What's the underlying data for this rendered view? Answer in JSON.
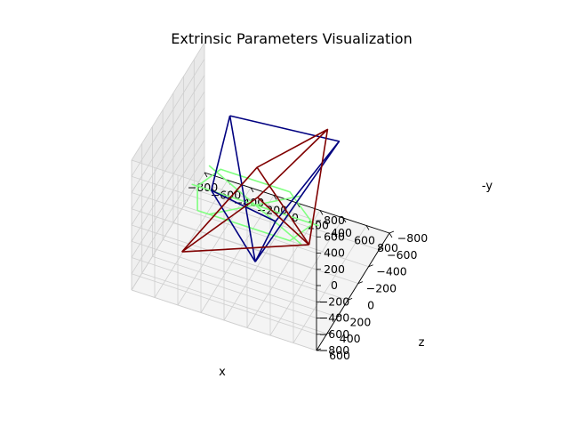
{
  "chart_data": {
    "type": "3d-line",
    "title": "Extrinsic Parameters Visualization",
    "xlabel": "x",
    "ylabel": "z",
    "zlabel": "-y",
    "xlim": [
      -800,
      800
    ],
    "ylim": [
      -800,
      600
    ],
    "zlim": [
      -800,
      800
    ],
    "xticks": [
      "−800",
      "−600",
      "−400",
      "−200",
      "0",
      "200",
      "400",
      "600",
      "800"
    ],
    "yticks": [
      "−800",
      "−600",
      "−400",
      "−200",
      "0",
      "200",
      "400",
      "600"
    ],
    "zticks": [
      "−800",
      "−600",
      "−400",
      "−200",
      "0",
      "200",
      "400",
      "600",
      "800"
    ],
    "grid": true,
    "colors": {
      "pane_left": "#e9e9e9",
      "pane_back": "#efefef",
      "pane_floor": "#f4f4f4",
      "grid": "#cfcfcf",
      "green": "#80ff80",
      "blue": "#000080",
      "red": "#800000"
    },
    "series": [
      {
        "color": "green",
        "polylines": [
          [
            [
              -500,
              0,
              -300
            ],
            [
              300,
              0,
              -300
            ],
            [
              500,
              0,
              0
            ],
            [
              300,
              0,
              300
            ],
            [
              -300,
              0,
              300
            ],
            [
              -500,
              0,
              0
            ],
            [
              -500,
              0,
              -300
            ]
          ],
          [
            [
              -550,
              0,
              0
            ],
            [
              550,
              0,
              0
            ]
          ],
          [
            [
              -400,
              0,
              -300
            ],
            [
              400,
              0,
              300
            ]
          ],
          [
            [
              -400,
              0,
              300
            ],
            [
              400,
              0,
              -300
            ]
          ]
        ]
      },
      {
        "color": "blue",
        "polylines": [
          [
            [
              -400,
              -400,
              500
            ],
            [
              500,
              -500,
              500
            ],
            [
              400,
              500,
              500
            ],
            [
              -200,
              400,
              500
            ],
            [
              -400,
              -400,
              500
            ]
          ],
          [
            [
              -400,
              -400,
              500
            ],
            [
              0,
              0,
              -700
            ]
          ],
          [
            [
              500,
              -500,
              500
            ],
            [
              0,
              0,
              -700
            ]
          ],
          [
            [
              400,
              500,
              500
            ],
            [
              0,
              0,
              -700
            ]
          ],
          [
            [
              -200,
              400,
              500
            ],
            [
              0,
              0,
              -700
            ]
          ]
        ]
      },
      {
        "color": "red",
        "polylines": [
          [
            [
              -500,
              300,
              -500
            ],
            [
              200,
              400,
              600
            ],
            [
              400,
              -500,
              600
            ],
            [
              -300,
              -700,
              -400
            ],
            [
              -500,
              300,
              -500
            ]
          ],
          [
            [
              -500,
              300,
              -500
            ],
            [
              600,
              300,
              100
            ]
          ],
          [
            [
              200,
              400,
              600
            ],
            [
              600,
              300,
              100
            ]
          ],
          [
            [
              400,
              -500,
              600
            ],
            [
              600,
              300,
              100
            ]
          ],
          [
            [
              -300,
              -700,
              -400
            ],
            [
              600,
              300,
              100
            ]
          ]
        ]
      }
    ]
  }
}
